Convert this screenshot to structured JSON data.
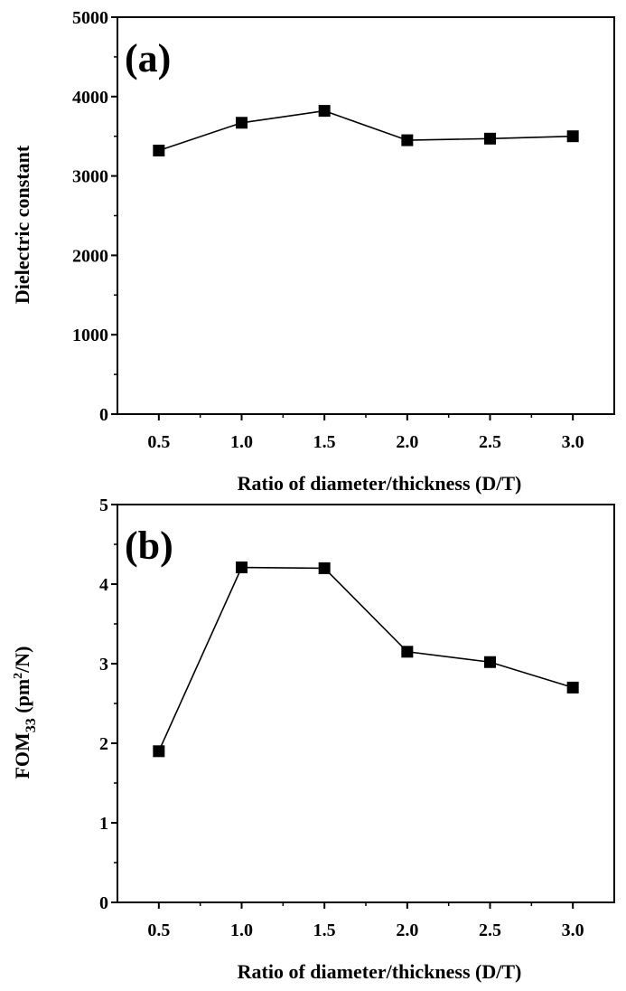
{
  "chart_data": [
    {
      "type": "line",
      "panel_label": "(a)",
      "xlabel": "Ratio of diameter/thickness (D/T)",
      "ylabel": "Dielectric constant",
      "xlim": [
        0.25,
        3.25
      ],
      "ylim": [
        0,
        5000
      ],
      "xticks": [
        0.5,
        1.0,
        1.5,
        2.0,
        2.5,
        3.0
      ],
      "xtick_labels": [
        "0.5",
        "1.0",
        "1.5",
        "2.0",
        "2.5",
        "3.0"
      ],
      "yticks": [
        0,
        1000,
        2000,
        3000,
        4000,
        5000
      ],
      "ytick_labels": [
        "0",
        "1000",
        "2000",
        "3000",
        "4000",
        "5000"
      ],
      "x": [
        0.5,
        1.0,
        1.5,
        2.0,
        2.5,
        3.0
      ],
      "series": [
        {
          "values": [
            3320,
            3670,
            3820,
            3450,
            3470,
            3500
          ],
          "marker": "square",
          "color": "#000000"
        }
      ],
      "grid": false
    },
    {
      "type": "line",
      "panel_label": "(b)",
      "xlabel": "Ratio of diameter/thickness (D/T)",
      "ylabel": {
        "main": "FOM",
        "subscript": "33",
        "unit_open": " (pm",
        "superscript": "2",
        "unit_close": "/N)"
      },
      "xlim": [
        0.25,
        3.25
      ],
      "ylim": [
        0,
        5
      ],
      "xticks": [
        0.5,
        1.0,
        1.5,
        2.0,
        2.5,
        3.0
      ],
      "xtick_labels": [
        "0.5",
        "1.0",
        "1.5",
        "2.0",
        "2.5",
        "3.0"
      ],
      "yticks": [
        0,
        1,
        2,
        3,
        4,
        5
      ],
      "ytick_labels": [
        "0",
        "1",
        "2",
        "3",
        "4",
        "5"
      ],
      "x": [
        0.5,
        1.0,
        1.5,
        2.0,
        2.5,
        3.0
      ],
      "series": [
        {
          "values": [
            1.9,
            4.21,
            4.2,
            3.15,
            3.02,
            2.7
          ],
          "marker": "square",
          "color": "#000000"
        }
      ],
      "grid": false
    }
  ]
}
